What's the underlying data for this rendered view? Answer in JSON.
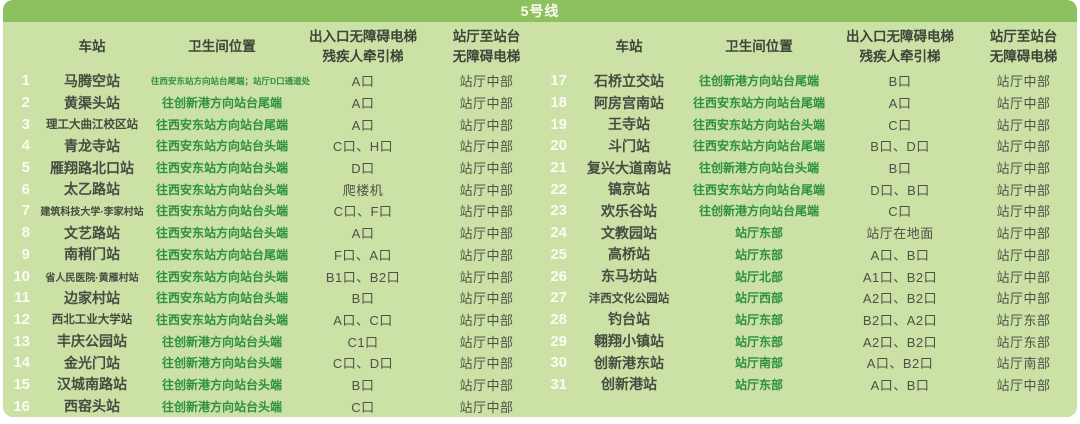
{
  "title": "5号线",
  "colors": {
    "bar-green": "#8dc05f",
    "panel-green": "#cbe1a5",
    "text-dark": "#474c41",
    "text-green": "#2e9140",
    "num-white": "#fbfbf0"
  },
  "columns": {
    "station": "车站",
    "toilet": "卫生间位置",
    "elevator_line1": "出入口无障碍电梯",
    "elevator_line2": "残疾人牵引梯",
    "hall_line1": "站厅至站台",
    "hall_line2": "无障碍电梯"
  },
  "left_rows": [
    {
      "no": "1",
      "station": "马腾空站",
      "toilet": "往西安东站方向站台尾端；站厅D口通道处",
      "elevator": "A口",
      "hall": "站厅中部"
    },
    {
      "no": "2",
      "station": "黄渠头站",
      "toilet": "往创新港方向站台尾端",
      "elevator": "A口",
      "hall": "站厅中部"
    },
    {
      "no": "3",
      "station": "理工大曲江校区站",
      "toilet": "往西安东站方向站台尾端",
      "elevator": "A口",
      "hall": "站厅中部"
    },
    {
      "no": "4",
      "station": "青龙寺站",
      "toilet": "往西安东站方向站台头端",
      "elevator": "C口、H口",
      "hall": "站厅中部"
    },
    {
      "no": "5",
      "station": "雁翔路北口站",
      "toilet": "往西安东站方向站台头端",
      "elevator": "D口",
      "hall": "站厅中部"
    },
    {
      "no": "6",
      "station": "太乙路站",
      "toilet": "往西安东站方向站台头端",
      "elevator": "爬楼机",
      "hall": "站厅中部"
    },
    {
      "no": "7",
      "station": "建筑科技大学·李家村站",
      "toilet": "往西安东站方向站台头端",
      "elevator": "C口、F口",
      "hall": "站厅中部"
    },
    {
      "no": "8",
      "station": "文艺路站",
      "toilet": "往西安东站方向站台头端",
      "elevator": "A口",
      "hall": "站厅中部"
    },
    {
      "no": "9",
      "station": "南稍门站",
      "toilet": "往西安东站方向站台尾端",
      "elevator": "F口、A口",
      "hall": "站厅中部"
    },
    {
      "no": "10",
      "station": "省人民医院·黄雁村站",
      "toilet": "往西安东站方向站台头端",
      "elevator": "B1口、B2口",
      "hall": "站厅中部"
    },
    {
      "no": "11",
      "station": "边家村站",
      "toilet": "往西安东站方向站台头端",
      "elevator": "B口",
      "hall": "站厅中部"
    },
    {
      "no": "12",
      "station": "西北工业大学站",
      "toilet": "往西安东站方向站台头端",
      "elevator": "A口、C口",
      "hall": "站厅中部"
    },
    {
      "no": "13",
      "station": "丰庆公园站",
      "toilet": "往创新港方向站台头端",
      "elevator": "C1口",
      "hall": "站厅中部"
    },
    {
      "no": "14",
      "station": "金光门站",
      "toilet": "往创新港方向站台头端",
      "elevator": "C口、D口",
      "hall": "站厅中部"
    },
    {
      "no": "15",
      "station": "汉城南路站",
      "toilet": "往创新港方向站台头端",
      "elevator": "B口",
      "hall": "站厅中部"
    },
    {
      "no": "16",
      "station": "西窑头站",
      "toilet": "往创新港方向站台头端",
      "elevator": "C口",
      "hall": "站厅中部"
    }
  ],
  "right_rows": [
    {
      "no": "17",
      "station": "石桥立交站",
      "toilet": "往创新港方向站台尾端",
      "elevator": "B口",
      "hall": "站厅中部"
    },
    {
      "no": "18",
      "station": "阿房宫南站",
      "toilet": "往西安东站方向站台尾端",
      "elevator": "A口",
      "hall": "站厅中部"
    },
    {
      "no": "19",
      "station": "王寺站",
      "toilet": "往西安东站方向站台头端",
      "elevator": "C口",
      "hall": "站厅中部"
    },
    {
      "no": "20",
      "station": "斗门站",
      "toilet": "往西安东站方向站台尾端",
      "elevator": "B口、D口",
      "hall": "站厅中部"
    },
    {
      "no": "21",
      "station": "复兴大道南站",
      "toilet": "往创新港方向站台头端",
      "elevator": "B口",
      "hall": "站厅中部"
    },
    {
      "no": "22",
      "station": "镐京站",
      "toilet": "往西安东站方向站台尾端",
      "elevator": "D口、B口",
      "hall": "站厅中部"
    },
    {
      "no": "23",
      "station": "欢乐谷站",
      "toilet": "往创新港方向站台尾端",
      "elevator": "C口",
      "hall": "站厅中部"
    },
    {
      "no": "24",
      "station": "文教园站",
      "toilet": "站厅东部",
      "elevator": "站厅在地面",
      "hall": "站厅中部"
    },
    {
      "no": "25",
      "station": "高桥站",
      "toilet": "站厅东部",
      "elevator": "A口、B口",
      "hall": "站厅中部"
    },
    {
      "no": "26",
      "station": "东马坊站",
      "toilet": "站厅北部",
      "elevator": "A1口、B2口",
      "hall": "站厅中部"
    },
    {
      "no": "27",
      "station": "沣西文化公园站",
      "toilet": "站厅西部",
      "elevator": "A2口、B2口",
      "hall": "站厅中部"
    },
    {
      "no": "28",
      "station": "钓台站",
      "toilet": "站厅东部",
      "elevator": "B2口、A2口",
      "hall": "站厅东部"
    },
    {
      "no": "29",
      "station": "翱翔小镇站",
      "toilet": "站厅东部",
      "elevator": "A2口、B2口",
      "hall": "站厅东部"
    },
    {
      "no": "30",
      "station": "创新港东站",
      "toilet": "站厅南部",
      "elevator": "A口、B2口",
      "hall": "站厅南部"
    },
    {
      "no": "31",
      "station": "创新港站",
      "toilet": "站厅东部",
      "elevator": "A口、B口",
      "hall": "站厅中部"
    }
  ]
}
